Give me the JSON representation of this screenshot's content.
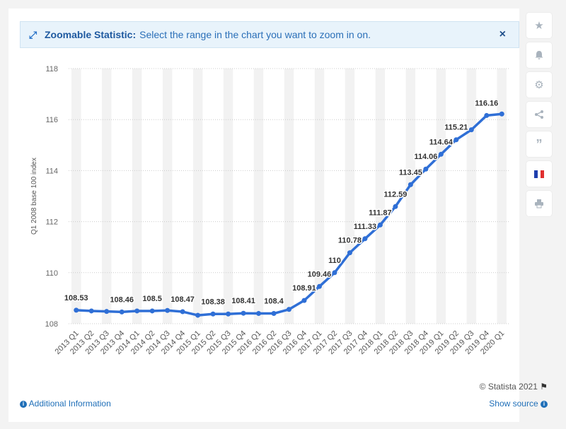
{
  "banner": {
    "title": "Zoomable Statistic:",
    "text": "Select the range in the chart you want to zoom in on.",
    "close_label": "×"
  },
  "sidebar": {
    "icons": [
      "star-icon",
      "bell-icon",
      "gear-icon",
      "share-icon",
      "quote-icon",
      "french-flag-icon",
      "print-icon"
    ],
    "flag_colors": [
      "#1f3fae",
      "#ffffff",
      "#e03030"
    ]
  },
  "footer": {
    "copyright": "© Statista 2021",
    "additional_info": "Additional Information",
    "show_source": "Show source"
  },
  "colors": {
    "line": "#2f6fd6",
    "band": "#f2f2f2",
    "grid": "#cccccc"
  },
  "chart_data": {
    "type": "line",
    "ylabel": "Q1 2008 base 100 index",
    "xlabel": "",
    "ylim": [
      108,
      118
    ],
    "yticks": [
      108,
      110,
      112,
      114,
      116,
      118
    ],
    "categories": [
      "2013 Q1",
      "2013 Q2",
      "2013 Q3",
      "2013 Q4",
      "2014 Q1",
      "2014 Q2",
      "2014 Q3",
      "2014 Q4",
      "2015 Q1",
      "2015 Q2",
      "2015 Q3",
      "2015 Q4",
      "2016 Q1",
      "2016 Q2",
      "2016 Q3",
      "2016 Q4",
      "2017 Q1",
      "2017 Q2",
      "2017 Q3",
      "2017 Q4",
      "2018 Q1",
      "2018 Q2",
      "2018 Q3",
      "2018 Q4",
      "2019 Q1",
      "2019 Q2",
      "2019 Q3",
      "2019 Q4",
      "2020 Q1"
    ],
    "values": [
      108.53,
      108.5,
      108.48,
      108.46,
      108.5,
      108.5,
      108.52,
      108.47,
      108.33,
      108.38,
      108.38,
      108.41,
      108.4,
      108.4,
      108.56,
      108.91,
      109.46,
      110,
      110.78,
      111.33,
      111.87,
      112.59,
      113.45,
      114.06,
      114.64,
      115.21,
      115.6,
      116.16,
      116.22
    ],
    "data_labels": [
      "108.53",
      "",
      "",
      "108.46",
      "",
      "108.5",
      "",
      "108.47",
      "",
      "108.38",
      "",
      "108.41",
      "",
      "108.4",
      "",
      "108.91",
      "109.46",
      "110",
      "110.78",
      "111.33",
      "111.87",
      "112.59",
      "113.45",
      "114.06",
      "114.64",
      "115.21",
      "",
      "116.16",
      ""
    ],
    "grid": true,
    "legend": "none"
  }
}
